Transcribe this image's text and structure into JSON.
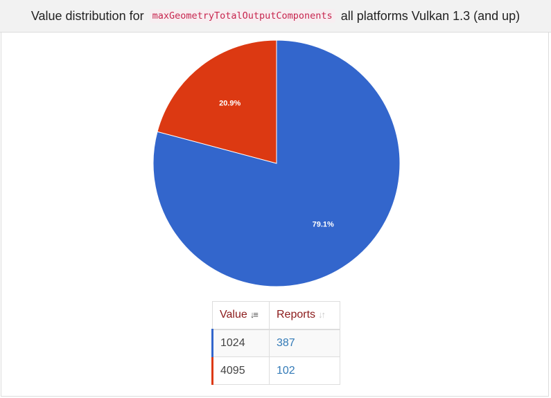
{
  "header": {
    "prefix": "Value distribution for",
    "property": "maxGeometryTotalOutputComponents",
    "suffix": "all platforms Vulkan 1.3 (and up)"
  },
  "table": {
    "headers": {
      "value": "Value",
      "reports": "Reports"
    },
    "rows": [
      {
        "value": "1024",
        "reports": "387"
      },
      {
        "value": "4095",
        "reports": "102"
      }
    ]
  },
  "icons": {
    "value_sort": "sort-amount-desc-icon",
    "reports_sort": "sort-both-icon"
  },
  "chart_data": {
    "type": "pie",
    "title": "",
    "categories": [
      "1024",
      "4095"
    ],
    "values": [
      387,
      102
    ],
    "percent_labels": [
      "79.1%",
      "20.9%"
    ],
    "colors": [
      "#3366cc",
      "#dc3912"
    ],
    "legend": "none",
    "start_angle_deg": 0,
    "direction": "clockwise"
  }
}
